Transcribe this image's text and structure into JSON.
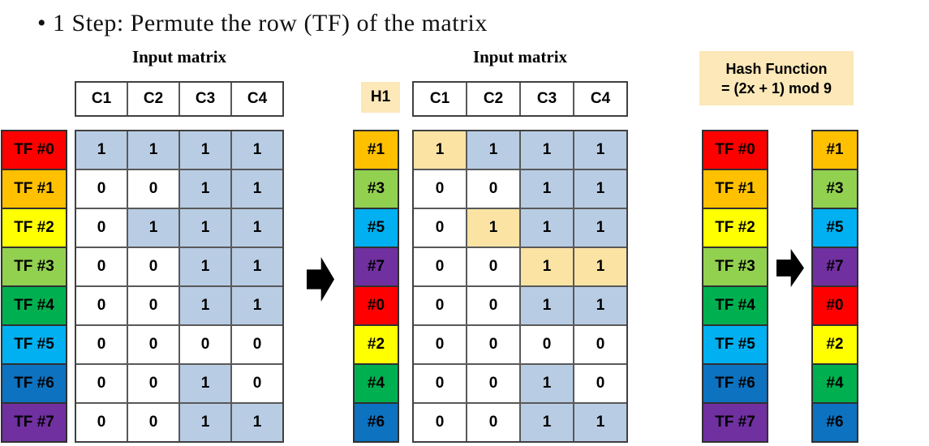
{
  "title": "• 1 Step: Permute the row (TF) of the matrix",
  "colors": {
    "red": "#fe0000",
    "orange": "#ffc000",
    "yellow": "#ffff00",
    "lightgreen": "#92d050",
    "green": "#00b050",
    "cyan": "#00b0f0",
    "blue": "#0d72c0",
    "purple": "#7030a0",
    "cell_one": "#b8cce4",
    "cell_zero": "#ffffff",
    "highlight": "#fbe3a4",
    "tan_box": "#fce8b8"
  },
  "left_panel": {
    "caption": "Input matrix",
    "columns": [
      "C1",
      "C2",
      "C3",
      "C4"
    ],
    "rows": [
      {
        "label": "TF #0",
        "color": "red",
        "values": [
          1,
          1,
          1,
          1
        ],
        "highlights": []
      },
      {
        "label": "TF #1",
        "color": "orange",
        "values": [
          0,
          0,
          1,
          1
        ],
        "highlights": []
      },
      {
        "label": "TF #2",
        "color": "yellow",
        "values": [
          0,
          1,
          1,
          1
        ],
        "highlights": []
      },
      {
        "label": "TF #3",
        "color": "lightgreen",
        "values": [
          0,
          0,
          1,
          1
        ],
        "highlights": []
      },
      {
        "label": "TF #4",
        "color": "green",
        "values": [
          0,
          0,
          1,
          1
        ],
        "highlights": []
      },
      {
        "label": "TF #5",
        "color": "cyan",
        "values": [
          0,
          0,
          0,
          0
        ],
        "highlights": []
      },
      {
        "label": "TF #6",
        "color": "blue",
        "values": [
          0,
          0,
          1,
          0
        ],
        "highlights": []
      },
      {
        "label": "TF #7",
        "color": "purple",
        "values": [
          0,
          0,
          1,
          1
        ],
        "highlights": []
      }
    ]
  },
  "middle_panel": {
    "caption": "Input matrix",
    "hash_header": "H1",
    "columns": [
      "C1",
      "C2",
      "C3",
      "C4"
    ],
    "rows": [
      {
        "label": "#1",
        "color": "orange",
        "values": [
          1,
          1,
          1,
          1
        ],
        "highlights": [
          0
        ]
      },
      {
        "label": "#3",
        "color": "lightgreen",
        "values": [
          0,
          0,
          1,
          1
        ],
        "highlights": []
      },
      {
        "label": "#5",
        "color": "cyan",
        "values": [
          0,
          1,
          1,
          1
        ],
        "highlights": [
          1
        ]
      },
      {
        "label": "#7",
        "color": "purple",
        "values": [
          0,
          0,
          1,
          1
        ],
        "highlights": [
          2,
          3
        ]
      },
      {
        "label": "#0",
        "color": "red",
        "values": [
          0,
          0,
          1,
          1
        ],
        "highlights": []
      },
      {
        "label": "#2",
        "color": "yellow",
        "values": [
          0,
          0,
          0,
          0
        ],
        "highlights": []
      },
      {
        "label": "#4",
        "color": "green",
        "values": [
          0,
          0,
          1,
          0
        ],
        "highlights": []
      },
      {
        "label": "#6",
        "color": "blue",
        "values": [
          0,
          0,
          1,
          1
        ],
        "highlights": []
      }
    ]
  },
  "right_panel": {
    "hash_box": {
      "line1": "Hash Function",
      "line2": "= (2x + 1) mod 9"
    },
    "tf_column": [
      {
        "label": "TF #0",
        "color": "red"
      },
      {
        "label": "TF #1",
        "color": "orange"
      },
      {
        "label": "TF #2",
        "color": "yellow"
      },
      {
        "label": "TF #3",
        "color": "lightgreen"
      },
      {
        "label": "TF #4",
        "color": "green"
      },
      {
        "label": "TF #5",
        "color": "cyan"
      },
      {
        "label": "TF #6",
        "color": "blue"
      },
      {
        "label": "TF #7",
        "color": "purple"
      }
    ],
    "hash_column": [
      {
        "label": "#1",
        "color": "orange"
      },
      {
        "label": "#3",
        "color": "lightgreen"
      },
      {
        "label": "#5",
        "color": "cyan"
      },
      {
        "label": "#7",
        "color": "purple"
      },
      {
        "label": "#0",
        "color": "red"
      },
      {
        "label": "#2",
        "color": "yellow"
      },
      {
        "label": "#4",
        "color": "green"
      },
      {
        "label": "#6",
        "color": "blue"
      }
    ]
  }
}
